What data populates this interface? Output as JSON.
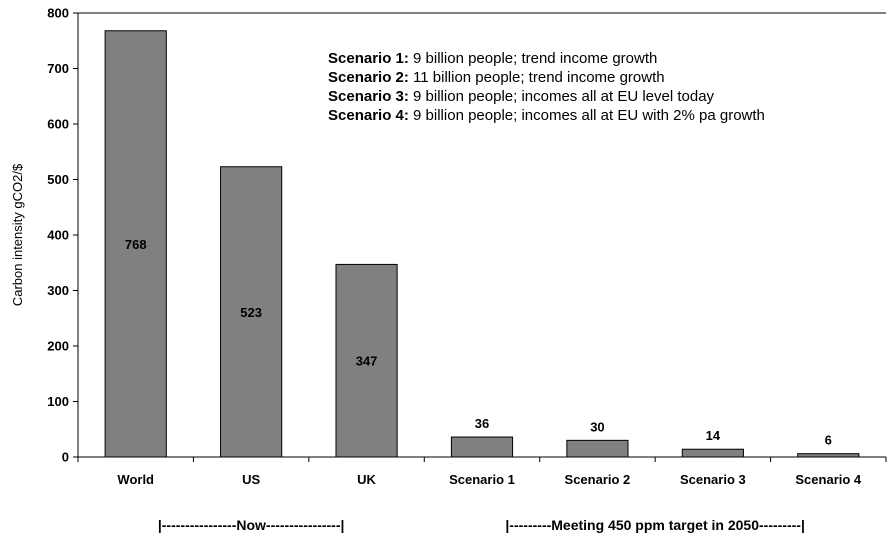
{
  "chart_data": {
    "type": "bar",
    "categories": [
      "World",
      "US",
      "UK",
      "Scenario 1",
      "Scenario 2",
      "Scenario 3",
      "Scenario 4"
    ],
    "values": [
      768,
      523,
      347,
      36,
      30,
      14,
      6
    ],
    "value_labels": [
      "768",
      "523",
      "347",
      "36",
      "30",
      "14",
      "6"
    ],
    "label_position": [
      "inside",
      "inside",
      "inside",
      "above",
      "above",
      "above",
      "above"
    ],
    "ylabel": "Carbon intensity gCO2/$",
    "ylim": [
      0,
      800
    ],
    "yticks": [
      "0",
      "100",
      "200",
      "300",
      "400",
      "500",
      "600",
      "700",
      "800"
    ],
    "bar_color": "#808080",
    "grid": false,
    "groups": [
      {
        "label": "|----------------Now----------------|",
        "categories": [
          "World",
          "US",
          "UK"
        ]
      },
      {
        "label": "|---------Meeting 450 ppm target in 2050---------|",
        "categories": [
          "Scenario 1",
          "Scenario 2",
          "Scenario 3",
          "Scenario 4"
        ]
      }
    ],
    "annotations": [
      {
        "bold": "Scenario 1:",
        "text": " 9 billion people; trend income growth"
      },
      {
        "bold": "Scenario 2:",
        "text": " 11 billion people; trend income growth"
      },
      {
        "bold": "Scenario 3:",
        "text": " 9 billion people; incomes all at EU level today"
      },
      {
        "bold": "Scenario 4:",
        "text": " 9 billion people; incomes all at EU with 2% pa growth"
      }
    ]
  }
}
